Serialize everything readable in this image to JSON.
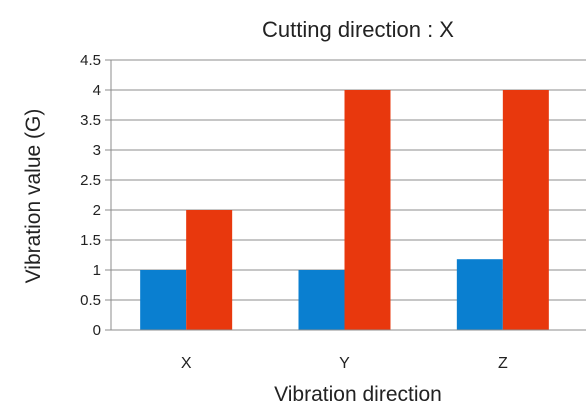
{
  "chart_data": {
    "type": "bar",
    "title": "Cutting direction : X",
    "xlabel": "Vibration direction",
    "ylabel": "Vibration value (G)",
    "categories": [
      "X",
      "Y",
      "Z"
    ],
    "series": [
      {
        "values": [
          1.0,
          1.0,
          1.18
        ],
        "color": "#0a7fd0"
      },
      {
        "values": [
          2.0,
          4.0,
          4.0
        ],
        "color": "#e8380d"
      }
    ],
    "ylim": [
      0,
      4.5
    ],
    "yticks": [
      "0",
      "0.5",
      "1",
      "1.5",
      "2",
      "2.5",
      "3",
      "3.5",
      "4",
      "4.5"
    ],
    "grid": true,
    "legend": "none"
  }
}
